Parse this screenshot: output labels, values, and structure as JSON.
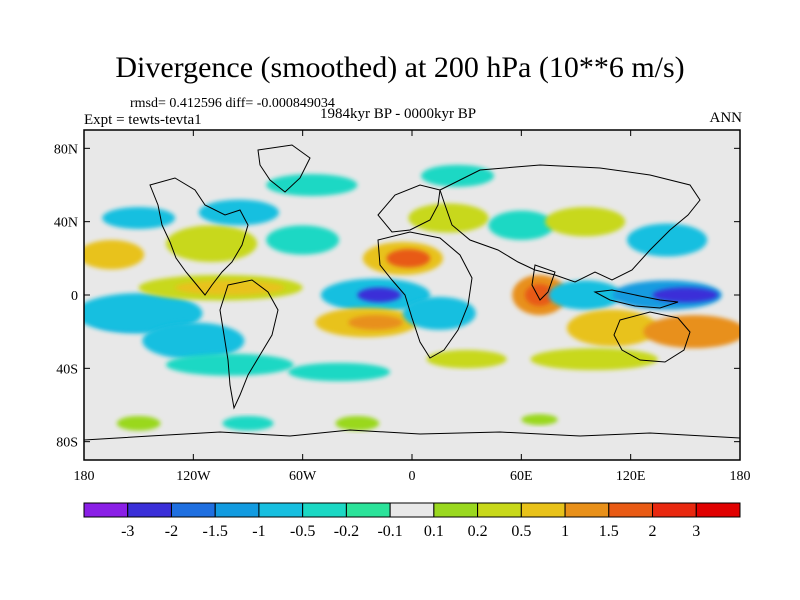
{
  "chart_data": {
    "type": "heatmap",
    "title": "Divergence (smoothed) at 200 hPa (10**6 m/s)",
    "stats_text": "rmsd= 0.412596 diff= -0.000849034",
    "experiment_text": "Expt = tewts-tevta1",
    "period_text": "1984kyr BP - 0000kyr BP",
    "season_text": "ANN",
    "xlim": [
      -180,
      180
    ],
    "ylim": [
      -90,
      90
    ],
    "x_ticks": [
      {
        "value": -180,
        "label": "180"
      },
      {
        "value": -120,
        "label": "120W"
      },
      {
        "value": -60,
        "label": "60W"
      },
      {
        "value": 0,
        "label": "0"
      },
      {
        "value": 60,
        "label": "60E"
      },
      {
        "value": 120,
        "label": "120E"
      },
      {
        "value": 180,
        "label": "180"
      }
    ],
    "y_ticks": [
      {
        "value": 80,
        "label": "80N"
      },
      {
        "value": 40,
        "label": "40N"
      },
      {
        "value": 0,
        "label": "0"
      },
      {
        "value": -40,
        "label": "40S"
      },
      {
        "value": -80,
        "label": "80S"
      }
    ],
    "colorbar": {
      "levels": [
        "-3",
        "-2",
        "-1.5",
        "-1",
        "-0.5",
        "-0.2",
        "-0.1",
        "0.1",
        "0.2",
        "0.5",
        "1",
        "1.5",
        "2",
        "3"
      ],
      "colors": [
        "#8a1fe6",
        "#3a2fd8",
        "#1f6fe0",
        "#129be0",
        "#17bfe0",
        "#1bd8c4",
        "#2be39a",
        "#e8e8e8",
        "#9ad81f",
        "#c8d81a",
        "#e8c21a",
        "#e8901a",
        "#e85a14",
        "#e8280f",
        "#e00000"
      ]
    },
    "blobs": [
      {
        "lon": -155,
        "lat": -12,
        "rlon": 22,
        "rlat": 7,
        "level": 2
      },
      {
        "lon": -150,
        "lat": -10,
        "rlon": 35,
        "rlat": 11,
        "level": 4
      },
      {
        "lon": -120,
        "lat": -25,
        "rlon": 28,
        "rlat": 10,
        "level": 4
      },
      {
        "lon": -105,
        "lat": 4,
        "rlon": 45,
        "rlat": 7,
        "level": 9
      },
      {
        "lon": -100,
        "lat": 4,
        "rlon": 30,
        "rlat": 4,
        "level": 10
      },
      {
        "lon": -165,
        "lat": 22,
        "rlon": 18,
        "rlat": 8,
        "level": 10
      },
      {
        "lon": -110,
        "lat": 28,
        "rlon": 25,
        "rlat": 10,
        "level": 9
      },
      {
        "lon": -150,
        "lat": 42,
        "rlon": 20,
        "rlat": 6,
        "level": 4
      },
      {
        "lon": -95,
        "lat": 45,
        "rlon": 22,
        "rlat": 7,
        "level": 4
      },
      {
        "lon": -60,
        "lat": 30,
        "rlon": 20,
        "rlat": 8,
        "level": 5
      },
      {
        "lon": -55,
        "lat": 60,
        "rlon": 25,
        "rlat": 6,
        "level": 5
      },
      {
        "lon": -20,
        "lat": 0,
        "rlon": 30,
        "rlat": 9,
        "level": 4
      },
      {
        "lon": -18,
        "lat": 0,
        "rlon": 12,
        "rlat": 4,
        "level": 1
      },
      {
        "lon": -5,
        "lat": 20,
        "rlon": 22,
        "rlat": 9,
        "level": 10
      },
      {
        "lon": -2,
        "lat": 20,
        "rlon": 12,
        "rlat": 5,
        "level": 12
      },
      {
        "lon": -25,
        "lat": -15,
        "rlon": 28,
        "rlat": 8,
        "level": 10
      },
      {
        "lon": -20,
        "lat": -15,
        "rlon": 15,
        "rlat": 4,
        "level": 11
      },
      {
        "lon": 15,
        "lat": -10,
        "rlon": 20,
        "rlat": 9,
        "level": 4
      },
      {
        "lon": 20,
        "lat": 42,
        "rlon": 22,
        "rlat": 8,
        "level": 9
      },
      {
        "lon": 25,
        "lat": 65,
        "rlon": 20,
        "rlat": 6,
        "level": 5
      },
      {
        "lon": 60,
        "lat": 38,
        "rlon": 18,
        "rlat": 8,
        "level": 5
      },
      {
        "lon": 70,
        "lat": 0,
        "rlon": 15,
        "rlat": 11,
        "level": 11
      },
      {
        "lon": 70,
        "lat": 0,
        "rlon": 8,
        "rlat": 6,
        "level": 12
      },
      {
        "lon": 95,
        "lat": 0,
        "rlon": 20,
        "rlat": 8,
        "level": 4
      },
      {
        "lon": 95,
        "lat": 40,
        "rlon": 22,
        "rlat": 8,
        "level": 9
      },
      {
        "lon": 140,
        "lat": 30,
        "rlon": 22,
        "rlat": 9,
        "level": 4
      },
      {
        "lon": 110,
        "lat": -18,
        "rlon": 25,
        "rlat": 10,
        "level": 10
      },
      {
        "lon": 140,
        "lat": 0,
        "rlon": 30,
        "rlat": 8,
        "level": 3
      },
      {
        "lon": 150,
        "lat": 0,
        "rlon": 18,
        "rlat": 4,
        "level": 1
      },
      {
        "lon": 155,
        "lat": -20,
        "rlon": 28,
        "rlat": 9,
        "level": 11
      },
      {
        "lon": 100,
        "lat": -35,
        "rlon": 35,
        "rlat": 6,
        "level": 9
      },
      {
        "lon": -100,
        "lat": -38,
        "rlon": 35,
        "rlat": 6,
        "level": 5
      },
      {
        "lon": -40,
        "lat": -42,
        "rlon": 28,
        "rlat": 5,
        "level": 5
      },
      {
        "lon": 30,
        "lat": -35,
        "rlon": 22,
        "rlat": 5,
        "level": 9
      },
      {
        "lon": -150,
        "lat": -70,
        "rlon": 12,
        "rlat": 4,
        "level": 8
      },
      {
        "lon": -90,
        "lat": -70,
        "rlon": 14,
        "rlat": 4,
        "level": 5
      },
      {
        "lon": -30,
        "lat": -70,
        "rlon": 12,
        "rlat": 4,
        "level": 8
      },
      {
        "lon": 70,
        "lat": -68,
        "rlon": 10,
        "rlat": 3,
        "level": 8
      }
    ]
  }
}
